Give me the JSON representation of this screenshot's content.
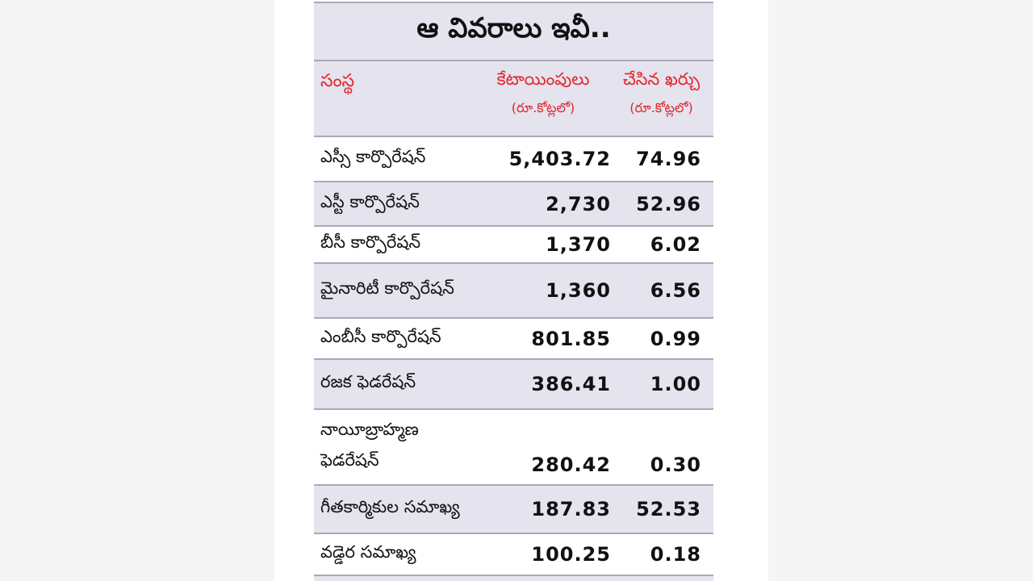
{
  "table": {
    "title": "ఆ వివరాలు ఇవీ..",
    "headers": {
      "entity": "సంస్థ",
      "allocation": "కేటాయింపులు",
      "allocation_unit": "(రూ.కోట్లలో)",
      "spent": "చేసిన ఖర్చు",
      "spent_unit": "(రూ.కోట్లలో)"
    },
    "rows": [
      {
        "entity": "ఎస్సీ కార్పొరేషన్",
        "allocation": "5,403.72",
        "spent": "74.96"
      },
      {
        "entity": "ఎస్టీ కార్పొరేషన్",
        "allocation": "2,730",
        "spent": "52.96"
      },
      {
        "entity": "బీసీ కార్పొరేషన్",
        "allocation": "1,370",
        "spent": "6.02"
      },
      {
        "entity": "మైనారిటీ కార్పొరేషన్",
        "allocation": "1,360",
        "spent": "6.56"
      },
      {
        "entity": "ఎంబీసీ కార్పొరేషన్",
        "allocation": "801.85",
        "spent": "0.99"
      },
      {
        "entity": "రజక ఫెడరేషన్",
        "allocation": "386.41",
        "spent": "1.00"
      },
      {
        "entity_line1": "నాయీబ్రాహ్మణ",
        "entity_line2": "ఫెడరేషన్",
        "allocation": "280.42",
        "spent": "0.30"
      },
      {
        "entity": "గీతకార్మికుల సమాఖ్య",
        "allocation": "187.83",
        "spent": "52.53"
      },
      {
        "entity": "వడ్డెర సమాఖ్య",
        "allocation": "100.25",
        "spent": "0.18"
      }
    ]
  }
}
